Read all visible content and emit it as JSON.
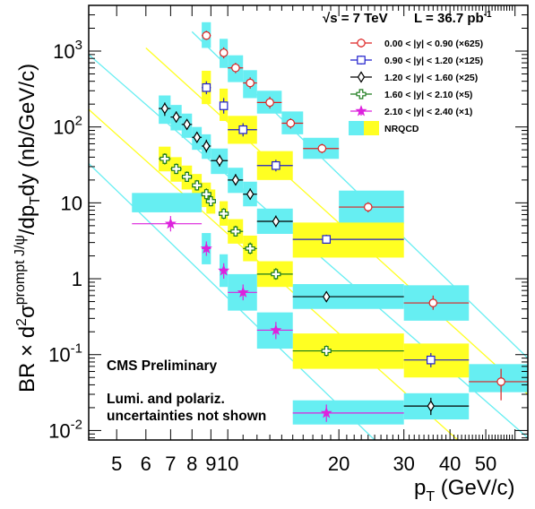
{
  "chart_data": {
    "type": "scatter",
    "title": "",
    "header_left": "√s = 7 TeV",
    "header_right": "L = 36.7 pb",
    "header_right_sup": "-1",
    "xlabel": "p",
    "xlabel_sub": "T",
    "xlabel_unit": " (GeV/c)",
    "ylabel_prefix": "BR × d",
    "ylabel_sup2": "2",
    "ylabel_sigma": "σ",
    "ylabel_sup_prompt": "prompt J/ψ",
    "ylabel_mid": "/dp",
    "ylabel_sub_t": "T",
    "ylabel_suffix": "dy (nb/GeV/c)",
    "x_scale": "log",
    "y_scale": "log",
    "xlim": [
      4.2,
      65
    ],
    "ylim": [
      0.0075,
      4000
    ],
    "x_ticks": [
      {
        "v": 5,
        "label": "5"
      },
      {
        "v": 6,
        "label": "6"
      },
      {
        "v": 7,
        "label": "7"
      },
      {
        "v": 8,
        "label": "8"
      },
      {
        "v": 9,
        "label": "9"
      },
      {
        "v": 10,
        "label": "10"
      },
      {
        "v": 20,
        "label": "20"
      },
      {
        "v": 30,
        "label": "30"
      },
      {
        "v": 40,
        "label": "40"
      },
      {
        "v": 50,
        "label": "50"
      }
    ],
    "y_ticks": [
      {
        "v": 0.01,
        "base": "10",
        "exp": "-2"
      },
      {
        "v": 0.1,
        "base": "10",
        "exp": "-1"
      },
      {
        "v": 1,
        "base": "1",
        "exp": ""
      },
      {
        "v": 10,
        "base": "10",
        "exp": ""
      },
      {
        "v": 100,
        "base": "10",
        "exp": "2"
      },
      {
        "v": 1000,
        "base": "10",
        "exp": "3"
      }
    ],
    "legend_position": "top-right",
    "notes": [
      "CMS Preliminary",
      "Lumi. and polariz.",
      "uncertainties not shown"
    ],
    "series": [
      {
        "name": "0.00 < |y| < 0.90 (×625)",
        "color": "#dd2222",
        "marker": "circle",
        "band_color": "#66eef2",
        "points": [
          {
            "x": 8.75,
            "y": 1600,
            "xlo": 8.5,
            "xhi": 9.0,
            "elo": 1400,
            "ehi": 1850,
            "blo": 1100,
            "bhi": 2400
          },
          {
            "x": 9.75,
            "y": 950,
            "xlo": 9.5,
            "xhi": 10.0,
            "elo": 800,
            "ehi": 1120,
            "blo": 600,
            "bhi": 1450
          },
          {
            "x": 10.5,
            "y": 600,
            "xlo": 10.0,
            "xhi": 11.0,
            "elo": 510,
            "ehi": 700,
            "blo": 390,
            "bhi": 880
          },
          {
            "x": 11.5,
            "y": 380,
            "xlo": 11.0,
            "xhi": 12.0,
            "elo": 320,
            "ehi": 450,
            "blo": 240,
            "bhi": 560
          },
          {
            "x": 13.0,
            "y": 210,
            "xlo": 12.0,
            "xhi": 14.0,
            "elo": 175,
            "ehi": 250,
            "blo": 150,
            "bhi": 300
          },
          {
            "x": 14.8,
            "y": 112,
            "xlo": 14.0,
            "xhi": 16.0,
            "elo": 95,
            "ehi": 130,
            "blo": 80,
            "bhi": 160
          },
          {
            "x": 18.0,
            "y": 52,
            "xlo": 16.0,
            "xhi": 20.0,
            "elo": 45,
            "ehi": 60,
            "blo": 38,
            "bhi": 72
          },
          {
            "x": 24.0,
            "y": 8.8,
            "xlo": 20.0,
            "xhi": 30.0,
            "elo": 7.5,
            "ehi": 10.2,
            "blo": 5.3,
            "bhi": 14.5
          },
          {
            "x": 36.0,
            "y": 0.48,
            "xlo": 30.0,
            "xhi": 45.0,
            "elo": 0.39,
            "ehi": 0.6,
            "blo": 0.28,
            "bhi": 0.82
          },
          {
            "x": 55.0,
            "y": 0.044,
            "xlo": 45.0,
            "xhi": 70.0,
            "elo": 0.025,
            "ehi": 0.065,
            "blo": 0.032,
            "bhi": 0.075
          }
        ]
      },
      {
        "name": "0.90 < |y| < 1.20 (×125)",
        "color": "#1e1ecc",
        "marker": "square",
        "band_color": "#ffff22",
        "points": [
          {
            "x": 8.75,
            "y": 330,
            "xlo": 8.5,
            "xhi": 9.0,
            "elo": 270,
            "ehi": 400,
            "blo": 200,
            "bhi": 550
          },
          {
            "x": 9.75,
            "y": 190,
            "xlo": 9.5,
            "xhi": 10.0,
            "elo": 150,
            "ehi": 240,
            "blo": 120,
            "bhi": 320
          },
          {
            "x": 11.0,
            "y": 92,
            "xlo": 10.0,
            "xhi": 12.0,
            "elo": 75,
            "ehi": 112,
            "blo": 60,
            "bhi": 140
          },
          {
            "x": 13.5,
            "y": 31,
            "xlo": 12.0,
            "xhi": 15.0,
            "elo": 26,
            "ehi": 37,
            "blo": 20,
            "bhi": 48
          },
          {
            "x": 18.5,
            "y": 3.3,
            "xlo": 15.0,
            "xhi": 30.0,
            "elo": 2.9,
            "ehi": 3.8,
            "blo": 1.9,
            "bhi": 5.5
          },
          {
            "x": 35.5,
            "y": 0.085,
            "xlo": 30.0,
            "xhi": 45.0,
            "elo": 0.068,
            "ehi": 0.105,
            "blo": 0.05,
            "bhi": 0.14
          }
        ]
      },
      {
        "name": "1.20 < |y| < 1.60 (×25)",
        "color": "#000000",
        "marker": "diamond",
        "band_color": "#66eef2",
        "points": [
          {
            "x": 6.75,
            "y": 175,
            "xlo": 6.5,
            "xhi": 7.0,
            "elo": 140,
            "ehi": 210,
            "blo": 110,
            "bhi": 260
          },
          {
            "x": 7.25,
            "y": 135,
            "xlo": 7.0,
            "xhi": 7.5,
            "elo": 115,
            "ehi": 160,
            "blo": 90,
            "bhi": 195
          },
          {
            "x": 7.75,
            "y": 108,
            "xlo": 7.5,
            "xhi": 8.0,
            "elo": 92,
            "ehi": 125,
            "blo": 72,
            "bhi": 150
          },
          {
            "x": 8.25,
            "y": 73,
            "xlo": 8.0,
            "xhi": 8.5,
            "elo": 62,
            "ehi": 86,
            "blo": 50,
            "bhi": 100
          },
          {
            "x": 8.75,
            "y": 56,
            "xlo": 8.5,
            "xhi": 9.0,
            "elo": 46,
            "ehi": 68,
            "blo": 38,
            "bhi": 80
          },
          {
            "x": 9.5,
            "y": 36,
            "xlo": 9.0,
            "xhi": 10.0,
            "elo": 30,
            "ehi": 43,
            "blo": 24,
            "bhi": 52
          },
          {
            "x": 10.5,
            "y": 20,
            "xlo": 10.0,
            "xhi": 11.0,
            "elo": 17,
            "ehi": 24,
            "blo": 13.5,
            "bhi": 29
          },
          {
            "x": 11.5,
            "y": 13,
            "xlo": 11.0,
            "xhi": 12.0,
            "elo": 11,
            "ehi": 15.5,
            "blo": 9,
            "bhi": 19
          },
          {
            "x": 13.5,
            "y": 5.7,
            "xlo": 12.0,
            "xhi": 15.0,
            "elo": 4.8,
            "ehi": 6.8,
            "blo": 3.9,
            "bhi": 8.4
          },
          {
            "x": 18.5,
            "y": 0.58,
            "xlo": 15.0,
            "xhi": 30.0,
            "elo": 0.5,
            "ehi": 0.68,
            "blo": 0.4,
            "bhi": 0.85
          },
          {
            "x": 35.5,
            "y": 0.021,
            "xlo": 30.0,
            "xhi": 45.0,
            "elo": 0.016,
            "ehi": 0.027,
            "blo": 0.014,
            "bhi": 0.031
          }
        ]
      },
      {
        "name": "1.60 < |y| < 2.10 (×5)",
        "color": "#1a7a1a",
        "marker": "cross",
        "band_color": "#ffff22",
        "points": [
          {
            "x": 6.75,
            "y": 38,
            "xlo": 6.5,
            "xhi": 7.0,
            "elo": 32,
            "ehi": 45,
            "blo": 26,
            "bhi": 55
          },
          {
            "x": 7.25,
            "y": 28,
            "xlo": 7.0,
            "xhi": 7.5,
            "elo": 24,
            "ehi": 33,
            "blo": 19,
            "bhi": 40
          },
          {
            "x": 7.75,
            "y": 22,
            "xlo": 7.5,
            "xhi": 8.0,
            "elo": 19,
            "ehi": 26,
            "blo": 15,
            "bhi": 31
          },
          {
            "x": 8.25,
            "y": 17,
            "xlo": 8.0,
            "xhi": 8.5,
            "elo": 14.5,
            "ehi": 20,
            "blo": 11.5,
            "bhi": 24
          },
          {
            "x": 8.75,
            "y": 13,
            "xlo": 8.5,
            "xhi": 9.0,
            "elo": 11,
            "ehi": 15.5,
            "blo": 8.8,
            "bhi": 18.5
          },
          {
            "x": 9.0,
            "y": 10.5,
            "xlo": 8.75,
            "xhi": 9.25,
            "elo": 9,
            "ehi": 12.5,
            "blo": 7.2,
            "bhi": 15
          },
          {
            "x": 9.75,
            "y": 7.2,
            "xlo": 9.5,
            "xhi": 10.0,
            "elo": 6.1,
            "ehi": 8.5,
            "blo": 5,
            "bhi": 10.5
          },
          {
            "x": 10.5,
            "y": 4.2,
            "xlo": 10.0,
            "xhi": 11.0,
            "elo": 3.6,
            "ehi": 5,
            "blo": 2.9,
            "bhi": 6.1
          },
          {
            "x": 11.5,
            "y": 2.5,
            "xlo": 11.0,
            "xhi": 12.0,
            "elo": 2.1,
            "ehi": 3,
            "blo": 1.7,
            "bhi": 3.7
          },
          {
            "x": 13.5,
            "y": 1.15,
            "xlo": 12.0,
            "xhi": 15.0,
            "elo": 0.97,
            "ehi": 1.38,
            "blo": 0.78,
            "bhi": 1.7
          },
          {
            "x": 18.5,
            "y": 0.112,
            "xlo": 15.0,
            "xhi": 30.0,
            "elo": 0.095,
            "ehi": 0.132,
            "blo": 0.065,
            "bhi": 0.19
          }
        ]
      },
      {
        "name": "2.10 < |y| < 2.40 (×1)",
        "color": "#dd22dd",
        "marker": "star",
        "band_color": "#66eef2",
        "points": [
          {
            "x": 7.0,
            "y": 5.3,
            "xlo": 5.5,
            "xhi": 8.5,
            "elo": 4.2,
            "ehi": 6.7,
            "blo": 7.5,
            "bhi": 13.5
          },
          {
            "x": 8.75,
            "y": 2.5,
            "xlo": 8.5,
            "xhi": 9.0,
            "elo": 2.0,
            "ehi": 3.1,
            "blo": 1.55,
            "bhi": 4.0
          },
          {
            "x": 9.75,
            "y": 1.28,
            "xlo": 9.5,
            "xhi": 10.0,
            "elo": 1.0,
            "ehi": 1.6,
            "blo": 0.78,
            "bhi": 2.1
          },
          {
            "x": 11.0,
            "y": 0.66,
            "xlo": 10.0,
            "xhi": 12.0,
            "elo": 0.52,
            "ehi": 0.84,
            "blo": 0.38,
            "bhi": 1.15
          },
          {
            "x": 13.5,
            "y": 0.21,
            "xlo": 12.0,
            "xhi": 15.0,
            "elo": 0.16,
            "ehi": 0.27,
            "blo": 0.12,
            "bhi": 0.36
          },
          {
            "x": 18.5,
            "y": 0.017,
            "xlo": 15.0,
            "xhi": 30.0,
            "elo": 0.013,
            "ehi": 0.022,
            "blo": 0.012,
            "bhi": 0.025
          }
        ]
      }
    ],
    "nrqcd_band": {
      "name": "NRQCD",
      "colors": [
        "#66eef2",
        "#ffff22"
      ]
    },
    "nrqcd_lines": [
      {
        "color": "#66eef2",
        "x0": 8.0,
        "y0": 1800,
        "x1": 65,
        "y1": 0.09
      },
      {
        "color": "#ffff22",
        "x0": 6.0,
        "y0": 1100,
        "x1": 65,
        "y1": 0.03
      },
      {
        "color": "#66eef2",
        "x0": 4.2,
        "y0": 900,
        "x1": 65,
        "y1": 0.008
      },
      {
        "color": "#ffff22",
        "x0": 4.2,
        "y0": 170,
        "x1": 42,
        "y1": 0.0075
      },
      {
        "color": "#66eef2",
        "x0": 4.2,
        "y0": 33,
        "x1": 25,
        "y1": 0.0075
      }
    ]
  }
}
